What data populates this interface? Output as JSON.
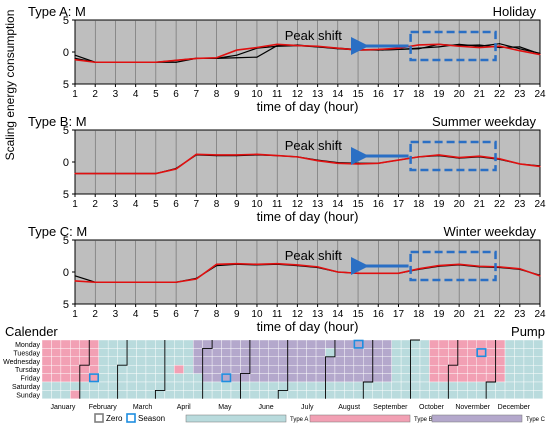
{
  "chart_data": [
    {
      "type": "line",
      "panel_label": "Type A: M",
      "condition": "Holiday",
      "annotation": "Peak shift",
      "xlabel": "time of day (hour)",
      "ylabel": "Scaling energy consumption",
      "xlim": [
        1,
        24
      ],
      "ylim": [
        -5,
        5
      ],
      "y_ticks": [
        "5",
        "0",
        "5"
      ],
      "grid": true,
      "x": [
        1,
        2,
        3,
        4,
        5,
        6,
        7,
        8,
        9,
        10,
        11,
        12,
        13,
        14,
        15,
        16,
        17,
        18,
        19,
        20,
        21,
        22,
        23,
        24
      ],
      "series": [
        {
          "color": "#000000",
          "values": [
            -0.5,
            -1.6,
            -1.6,
            -1.6,
            -1.6,
            -1.6,
            -1.0,
            -1.0,
            -0.9,
            -0.8,
            1.0,
            1.1,
            0.8,
            0.6,
            0.4,
            0.3,
            0.4,
            0.6,
            0.8,
            1.2,
            0.9,
            1.3,
            0.5,
            -0.2
          ]
        },
        {
          "color": "#000000",
          "values": [
            -1.0,
            -1.6,
            -1.6,
            -1.6,
            -1.6,
            -1.3,
            -1.0,
            -1.0,
            -0.5,
            0.6,
            0.9,
            1.0,
            0.8,
            0.5,
            0.3,
            0.3,
            0.4,
            0.5,
            1.2,
            1.0,
            1.1,
            0.7,
            0.8,
            -0.3
          ]
        },
        {
          "color": "#e01010",
          "values": [
            -1.2,
            -1.6,
            -1.6,
            -1.6,
            -1.6,
            -1.3,
            -1.0,
            -0.9,
            0.3,
            0.7,
            1.2,
            1.0,
            0.9,
            0.6,
            0.3,
            0.4,
            0.6,
            1.1,
            1.2,
            0.9,
            0.7,
            0.9,
            0.2,
            -0.4
          ]
        }
      ]
    },
    {
      "type": "line",
      "panel_label": "Type B: M",
      "condition": "Summer weekday",
      "annotation": "Peak shift",
      "xlabel": "time of day (hour)",
      "ylabel": "Scaling energy consumption",
      "xlim": [
        1,
        24
      ],
      "ylim": [
        -5,
        5
      ],
      "y_ticks": [
        "5",
        "0",
        "5"
      ],
      "grid": true,
      "x": [
        1,
        2,
        3,
        4,
        5,
        6,
        7,
        8,
        9,
        10,
        11,
        12,
        13,
        14,
        15,
        16,
        17,
        18,
        19,
        20,
        21,
        22,
        23,
        24
      ],
      "series": [
        {
          "color": "#000000",
          "values": [
            -1.8,
            -1.8,
            -1.8,
            -1.8,
            -1.8,
            -1.0,
            1.1,
            1.0,
            1.0,
            1.1,
            1.0,
            0.8,
            0.3,
            -0.1,
            -0.2,
            -0.2,
            0.3,
            0.8,
            1.0,
            0.6,
            0.8,
            0.4,
            -0.3,
            -0.6
          ]
        },
        {
          "color": "#e01010",
          "values": [
            -1.8,
            -1.8,
            -1.8,
            -1.8,
            -1.8,
            -1.1,
            1.2,
            1.1,
            1.1,
            1.2,
            1.0,
            0.8,
            0.2,
            -0.2,
            -0.3,
            -0.2,
            0.3,
            0.8,
            1.1,
            0.7,
            0.9,
            0.5,
            -0.3,
            -0.7
          ]
        }
      ]
    },
    {
      "type": "line",
      "panel_label": "Type C: M",
      "condition": "Winter weekday",
      "annotation": "Peak shift",
      "xlabel": "time of day (hour)",
      "ylabel": "Scaling energy consumption",
      "xlim": [
        1,
        24
      ],
      "ylim": [
        -5,
        5
      ],
      "y_ticks": [
        "5",
        "0",
        "5"
      ],
      "grid": true,
      "x": [
        1,
        2,
        3,
        4,
        5,
        6,
        7,
        8,
        9,
        10,
        11,
        12,
        13,
        14,
        15,
        16,
        17,
        18,
        19,
        20,
        21,
        22,
        23,
        24
      ],
      "series": [
        {
          "color": "#000000",
          "values": [
            -0.6,
            -1.6,
            -1.6,
            -1.6,
            -1.6,
            -1.6,
            -1.0,
            1.0,
            1.2,
            1.1,
            1.2,
            1.0,
            0.7,
            0.0,
            -0.2,
            -0.2,
            -0.2,
            0.4,
            0.9,
            1.1,
            0.8,
            0.7,
            0.4,
            -0.5
          ]
        },
        {
          "color": "#e01010",
          "values": [
            -1.4,
            -1.6,
            -1.6,
            -1.6,
            -1.6,
            -1.6,
            -1.1,
            1.2,
            1.3,
            1.2,
            1.3,
            1.1,
            0.8,
            0.0,
            -0.2,
            -0.2,
            -0.2,
            0.5,
            1.0,
            1.2,
            0.9,
            0.8,
            0.5,
            -0.6
          ]
        }
      ]
    },
    {
      "type": "heatmap",
      "title": "Calender",
      "right_label": "Pump",
      "rows": [
        "Monday",
        "Tuesday",
        "Wednesday",
        "Tursday",
        "Friday",
        "Saturday",
        "Sunday"
      ],
      "months": [
        "January",
        "February",
        "March",
        "April",
        "May",
        "June",
        "July",
        "August",
        "September",
        "October",
        "Novermber",
        "December"
      ],
      "month_starts": [
        0,
        31,
        59,
        90,
        120,
        151,
        181,
        212,
        243,
        273,
        304,
        334
      ],
      "weeks": 53,
      "colors": {
        "A": "#b9dbdd",
        "B": "#f2a0b4",
        "C": "#b4a8cc"
      },
      "legend": [
        {
          "kind": "zero",
          "label": "Zero",
          "color": "#7f7f7f"
        },
        {
          "kind": "season",
          "label": "Season",
          "color": "#1e8ee0"
        },
        {
          "kind": "A",
          "label": "Type A",
          "color": "#b9dbdd"
        },
        {
          "kind": "B",
          "label": "Type B",
          "color": "#f2a0b4"
        },
        {
          "kind": "C",
          "label": "Type C",
          "color": "#b4a8cc"
        }
      ]
    }
  ]
}
